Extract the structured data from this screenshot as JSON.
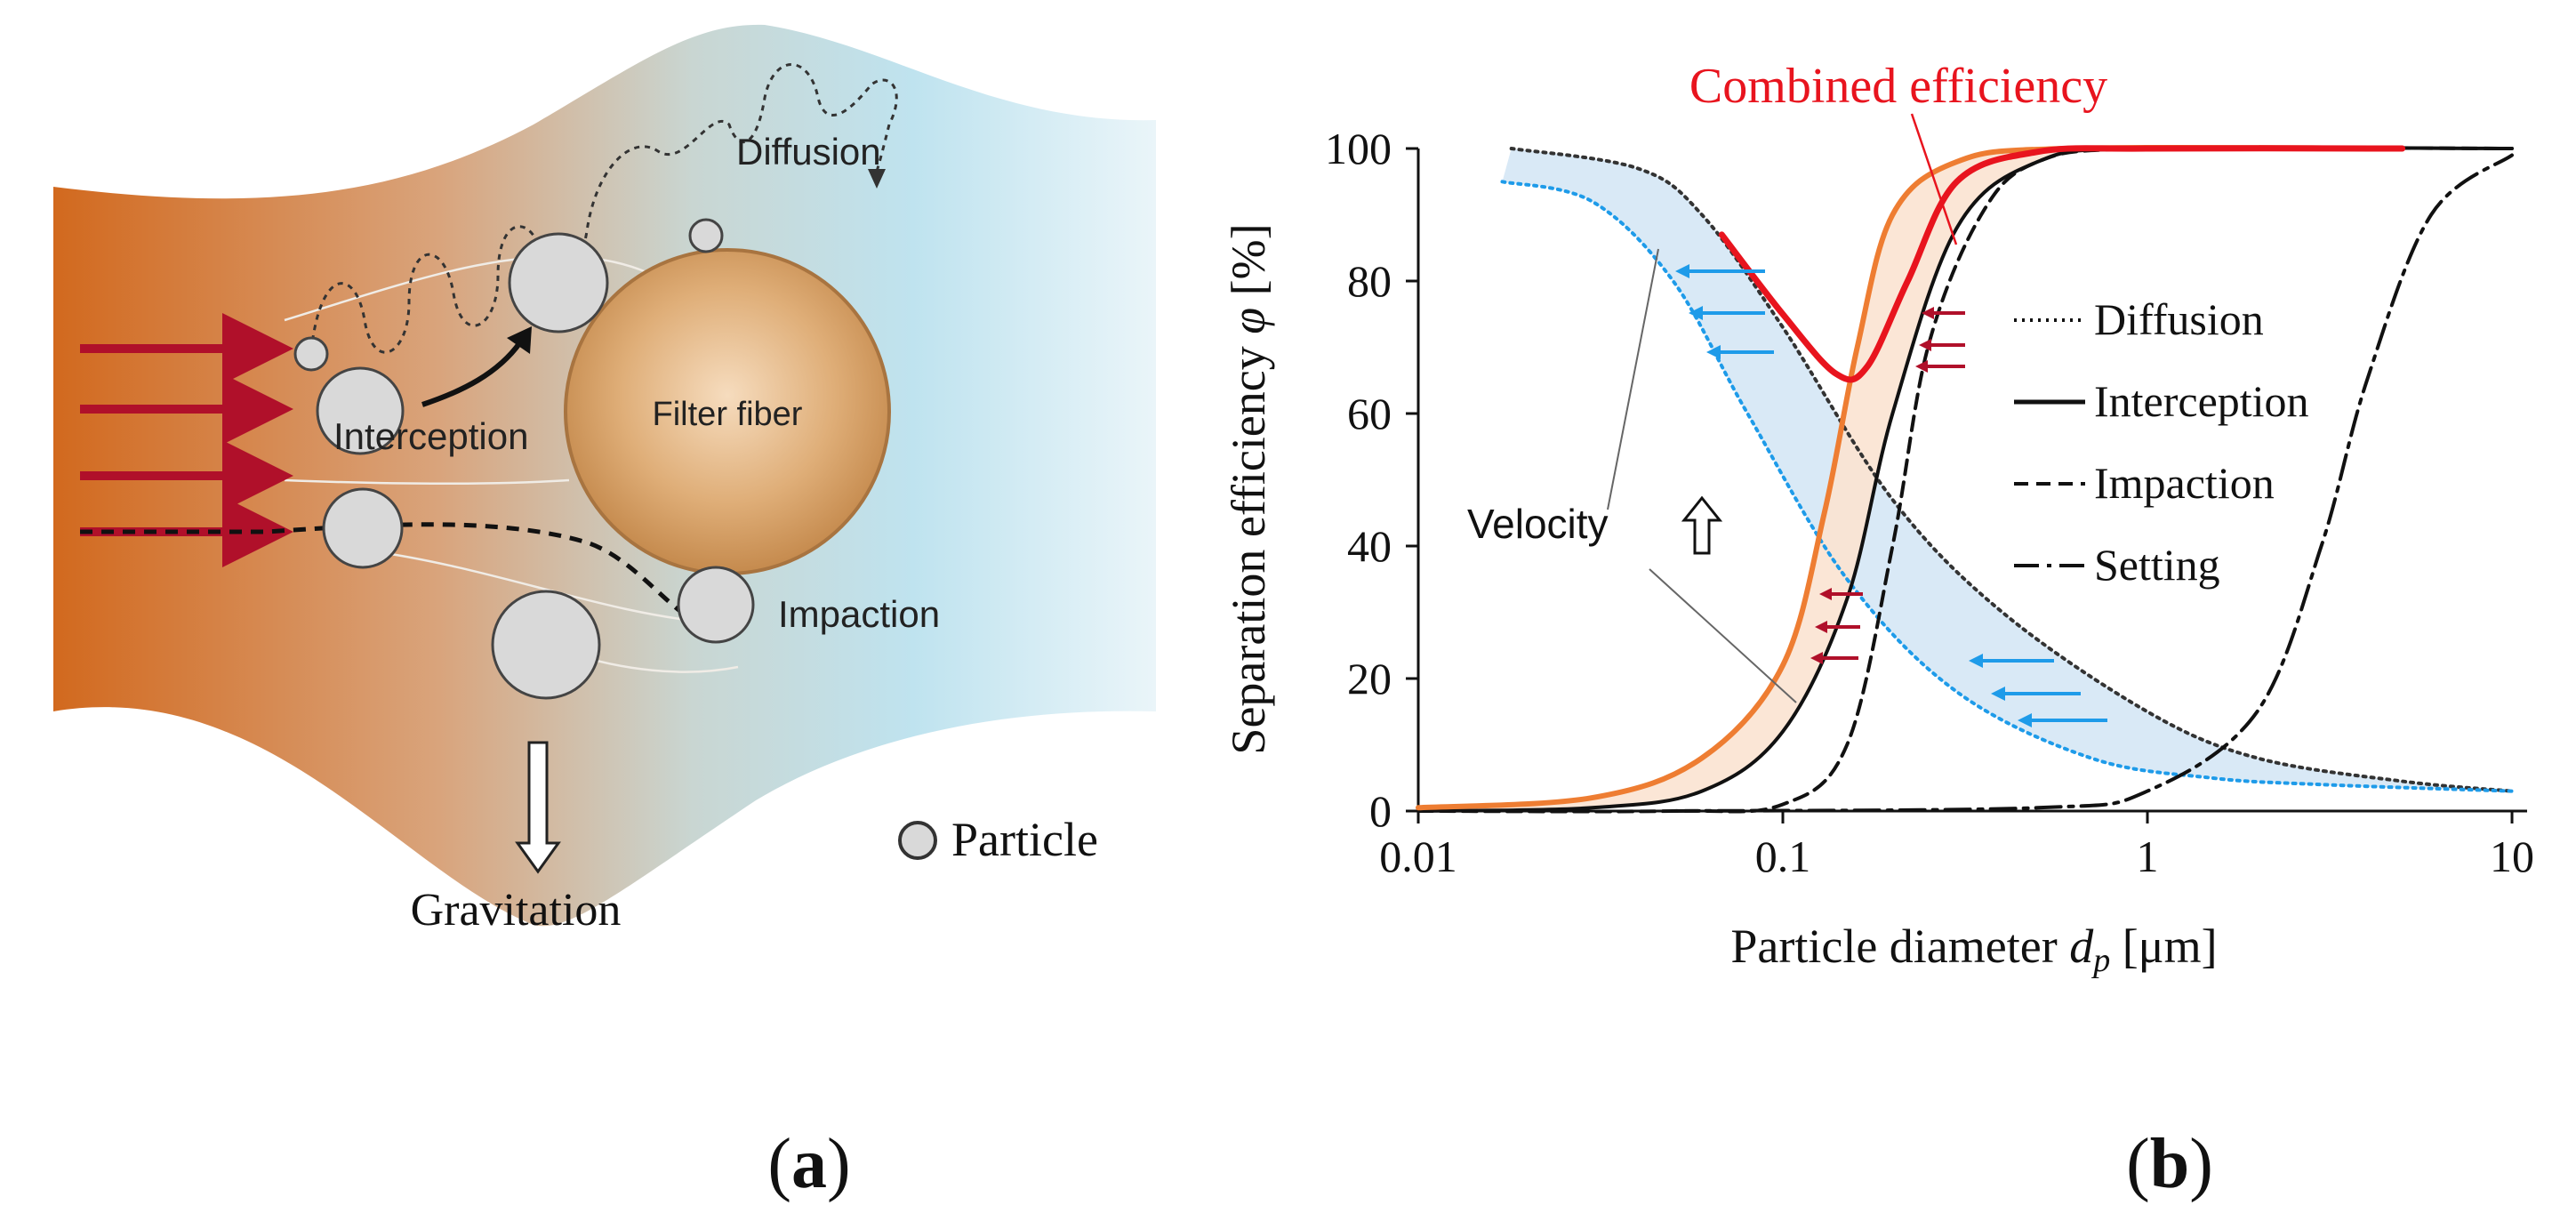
{
  "panel_a": {
    "labels": {
      "diffusion": "Diffusion",
      "filter_fiber": "Filter fiber",
      "interception": "Interception",
      "impaction": "Impaction",
      "gravitation": "Gravitation",
      "particle_legend": "Particle"
    },
    "caption_open": "(",
    "caption_letter": "a",
    "caption_close": ")",
    "colors": {
      "flow_left": "#d2691e",
      "flow_right": "#cfe9f3",
      "arrow": "#b0102a",
      "fiber": "#d8a36c",
      "particle": "#d9d9d9"
    }
  },
  "panel_b": {
    "caption_open": "(",
    "caption_letter": "b",
    "caption_close": ")",
    "combined_label": "Combined efficiency",
    "velocity_label": "Velocity",
    "ylabel_text": "Separation efficiency ",
    "ylabel_symbol": "φ",
    "ylabel_unit": " [%]",
    "xlabel_text": "Particle diameter ",
    "xlabel_symbol": "d",
    "xlabel_sub": "p",
    "xlabel_unit": " [μm]",
    "legend": [
      {
        "key": "diffusion",
        "label": "Diffusion",
        "dash": "3,6",
        "width": 4
      },
      {
        "key": "interception",
        "label": "Interception",
        "dash": "",
        "width": 5
      },
      {
        "key": "impaction",
        "label": "Impaction",
        "dash": "16,9",
        "width": 4
      },
      {
        "key": "setting",
        "label": "Setting",
        "dash": "28,9,5,9",
        "width": 4
      }
    ]
  },
  "chart_data": {
    "type": "line",
    "title": "",
    "xlabel": "Particle diameter dp [μm]",
    "ylabel": "Separation efficiency φ [%]",
    "xscale": "log",
    "xlim": [
      0.01,
      11
    ],
    "ylim": [
      0,
      100
    ],
    "xticks": [
      {
        "value": 0.01,
        "label": "0.01"
      },
      {
        "value": 0.1,
        "label": "0.1"
      },
      {
        "value": 1,
        "label": "1"
      },
      {
        "value": 10,
        "label": "10"
      }
    ],
    "yticks": [
      {
        "value": 0,
        "label": "0"
      },
      {
        "value": 20,
        "label": "20"
      },
      {
        "value": 40,
        "label": "40"
      },
      {
        "value": 60,
        "label": "60"
      },
      {
        "value": 80,
        "label": "80"
      },
      {
        "value": 100,
        "label": "100"
      }
    ],
    "series": [
      {
        "name": "Diffusion",
        "style": "dotted",
        "color": "#333333",
        "x": [
          0.018,
          0.04,
          0.06,
          0.1,
          0.2,
          0.4,
          1,
          2,
          5,
          10
        ],
        "y": [
          100,
          97,
          90,
          73,
          47,
          30,
          15,
          8,
          4.5,
          3
        ]
      },
      {
        "name": "Diffusion (higher velocity)",
        "style": "dotted",
        "color": "#1e9be9",
        "x": [
          0.017,
          0.03,
          0.05,
          0.08,
          0.15,
          0.3,
          0.7,
          1.5,
          3,
          10
        ],
        "y": [
          95,
          92,
          80,
          60,
          35,
          18,
          8,
          5,
          4,
          3
        ]
      },
      {
        "name": "Interception",
        "style": "solid",
        "color": "#111111",
        "x": [
          0.01,
          0.03,
          0.06,
          0.1,
          0.15,
          0.2,
          0.3,
          0.5,
          1,
          10
        ],
        "y": [
          0,
          0.5,
          3,
          12,
          32,
          60,
          88,
          98,
          100,
          100
        ]
      },
      {
        "name": "Impaction",
        "style": "dashed",
        "color": "#111111",
        "x": [
          0.01,
          0.05,
          0.1,
          0.15,
          0.2,
          0.25,
          0.35,
          0.5,
          1,
          10
        ],
        "y": [
          0,
          0,
          1,
          10,
          40,
          70,
          90,
          98,
          100,
          100
        ]
      },
      {
        "name": "Setting",
        "style": "dashdot",
        "color": "#111111",
        "x": [
          0.05,
          0.5,
          1,
          2,
          3,
          4,
          6,
          10
        ],
        "y": [
          0,
          0.5,
          3,
          15,
          40,
          65,
          90,
          99
        ]
      },
      {
        "name": "Interception (higher velocity)",
        "style": "solid",
        "color": "#ee7d32",
        "x": [
          0.01,
          0.03,
          0.06,
          0.1,
          0.13,
          0.16,
          0.2,
          0.3,
          0.6,
          5
        ],
        "y": [
          0.5,
          2,
          8,
          22,
          45,
          70,
          90,
          98,
          100,
          100
        ]
      },
      {
        "name": "Combined efficiency",
        "style": "solid",
        "color": "#e8141e",
        "x": [
          0.068,
          0.1,
          0.14,
          0.17,
          0.22,
          0.3,
          0.5,
          1,
          5
        ],
        "y": [
          87,
          75,
          66,
          67,
          80,
          95,
          99.5,
          100,
          100
        ]
      }
    ]
  }
}
